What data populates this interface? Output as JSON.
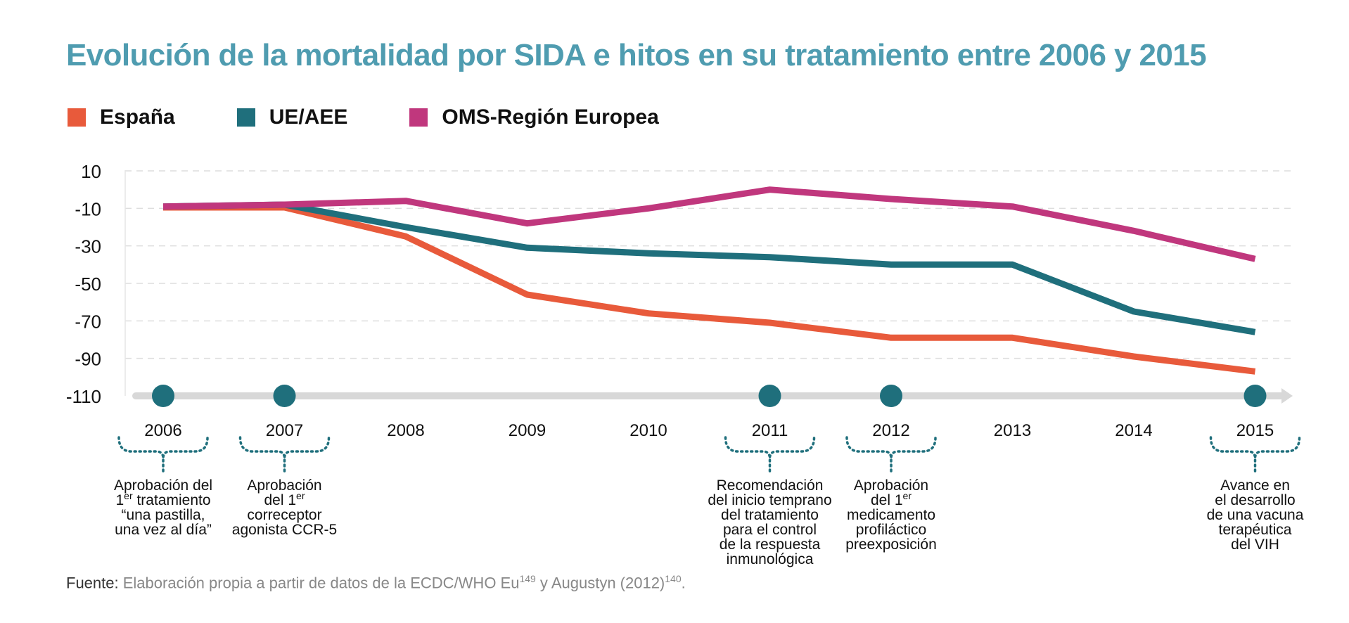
{
  "title": "Evolución de la mortalidad por SIDA e hitos en su tratamiento entre 2006 y 2015",
  "legend": [
    {
      "label": "España",
      "color": "#e85a3b"
    },
    {
      "label": "UE/AEE",
      "color": "#1f6f7c"
    },
    {
      "label": "OMS-Región Europea",
      "color": "#c0377d"
    }
  ],
  "chart_data": {
    "type": "line",
    "x": [
      "2006",
      "2007",
      "2008",
      "2009",
      "2010",
      "2011",
      "2012",
      "2013",
      "2014",
      "2015"
    ],
    "yticks": [
      "10",
      "-10",
      "-30",
      "-50",
      "-70",
      "-90",
      "-110"
    ],
    "ylim": [
      -110,
      10
    ],
    "grid": true,
    "legend_position": "top-left",
    "series": [
      {
        "name": "España",
        "color": "#e85a3b",
        "values": [
          -9.5,
          -9.5,
          -25,
          -56,
          -66,
          -71,
          -79,
          -79,
          -89,
          -97
        ]
      },
      {
        "name": "UE/AEE",
        "color": "#1f6f7c",
        "values": [
          -9,
          -8,
          -20,
          -31,
          -34,
          -36,
          -40,
          -40,
          -65,
          -76
        ]
      },
      {
        "name": "OMS-Región Europea",
        "color": "#c0377d",
        "values": [
          -9,
          -8,
          -6,
          -18,
          -10,
          0,
          -5,
          -9,
          -22,
          -37
        ]
      }
    ],
    "milestones": [
      {
        "year": "2006",
        "lines": [
          "Aprobación del",
          "1|er| tratamiento",
          "“una pastilla,",
          "una vez al día”"
        ]
      },
      {
        "year": "2007",
        "lines": [
          "Aprobación",
          "del 1|er|",
          "correceptor",
          "agonista CCR-5"
        ]
      },
      {
        "year": "2011",
        "lines": [
          "Recomendación",
          "del inicio temprano",
          "del tratamiento",
          "para el control",
          "de la respuesta",
          "inmunológica"
        ]
      },
      {
        "year": "2012",
        "lines": [
          "Aprobación",
          "del 1|er|",
          "medicamento",
          "profiláctico",
          "preexposición"
        ]
      },
      {
        "year": "2015",
        "lines": [
          "Avance en",
          "el desarrollo",
          "de una vacuna",
          "terapéutica",
          "del VIH"
        ]
      }
    ],
    "timeline_color": "#d8d8d8",
    "milestone_color": "#1f6f7c"
  },
  "source": {
    "lead": "Fuente:",
    "text": "Elaboración propia a partir de datos de la ECDC/WHO Eu",
    "ref1": "149",
    "text2": " y Augustyn (2012)",
    "ref2": "140",
    "end": "."
  }
}
